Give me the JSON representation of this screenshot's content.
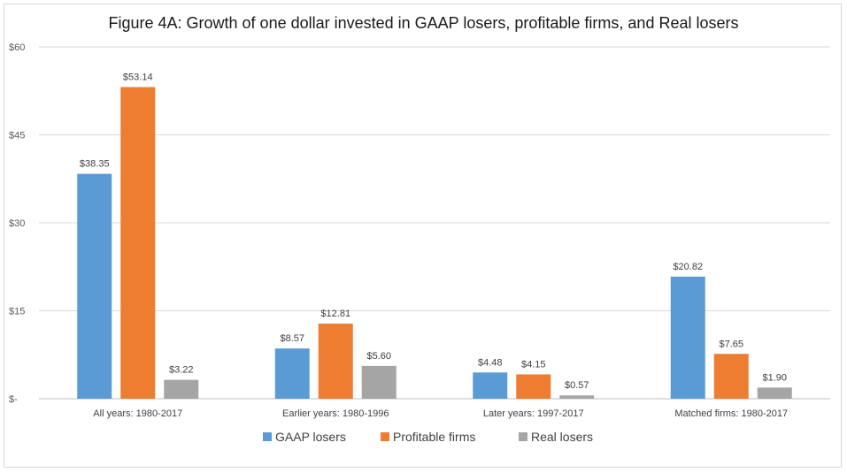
{
  "chart_data": {
    "type": "bar",
    "title": "Figure 4A: Growth of one dollar invested in GAAP losers, profitable firms, and Real losers",
    "xlabel": "",
    "ylabel": "",
    "ylim": [
      0,
      60
    ],
    "yticks": [
      0,
      15,
      30,
      45,
      60
    ],
    "ytick_labels": [
      "$-",
      "$15",
      "$30",
      "$45",
      "$60"
    ],
    "grid": true,
    "legend_position": "bottom",
    "categories": [
      "All years: 1980-2017",
      "Earlier years: 1980-1996",
      "Later years: 1997-2017",
      "Matched firms: 1980-2017"
    ],
    "series": [
      {
        "name": "GAAP losers",
        "color": "#5b9bd5",
        "values": [
          38.35,
          8.57,
          4.48,
          20.82
        ],
        "labels": [
          "$38.35",
          "$8.57",
          "$4.48",
          "$20.82"
        ]
      },
      {
        "name": "Profitable firms",
        "color": "#ed7d31",
        "values": [
          53.14,
          12.81,
          4.15,
          7.65
        ],
        "labels": [
          "$53.14",
          "$12.81",
          "$4.15",
          "$7.65"
        ]
      },
      {
        "name": "Real losers",
        "color": "#a5a5a5",
        "values": [
          3.22,
          5.6,
          0.57,
          1.9
        ],
        "labels": [
          "$3.22",
          "$5.60",
          "$0.57",
          "$1.90"
        ]
      }
    ]
  }
}
